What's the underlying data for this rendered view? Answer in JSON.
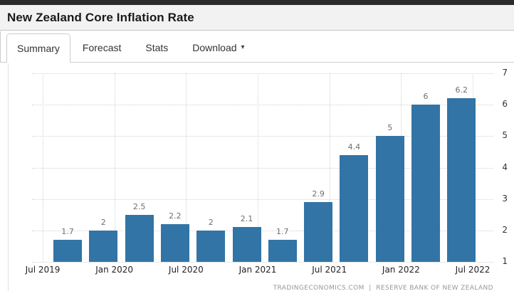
{
  "header": {
    "title": "New Zealand Core Inflation Rate"
  },
  "tabs": [
    {
      "label": "Summary",
      "active": true
    },
    {
      "label": "Forecast",
      "active": false
    },
    {
      "label": "Stats",
      "active": false
    },
    {
      "label": "Download",
      "active": false,
      "caret_icon": "▾"
    }
  ],
  "chart_data": {
    "type": "bar",
    "title": "New Zealand Core Inflation Rate",
    "series": [
      {
        "name": "Core Inflation Rate (%)",
        "values": [
          1.7,
          2,
          2.5,
          2.2,
          2,
          2.1,
          1.7,
          2.9,
          4.4,
          5,
          6,
          6.2
        ]
      }
    ],
    "value_labels": [
      "1.7",
      "2",
      "2.5",
      "2.2",
      "2",
      "2.1",
      "1.7",
      "2.9",
      "4.4",
      "5",
      "6",
      "6.2"
    ],
    "x_tick_labels": [
      "Jul 2019",
      "Jan 2020",
      "Jul 2020",
      "Jan 2021",
      "Jul 2021",
      "Jan 2022",
      "Jul 2022"
    ],
    "y_ticks": [
      1,
      2,
      3,
      4,
      5,
      6,
      7
    ],
    "ylim": [
      1,
      7
    ],
    "y_axis_position": "right",
    "grid": "dotted",
    "legend": "none",
    "bar_color": "#3274a5"
  },
  "attribution": {
    "text": "TRADINGECONOMICS.COM  |  RESERVE BANK OF NEW ZEALAND"
  }
}
